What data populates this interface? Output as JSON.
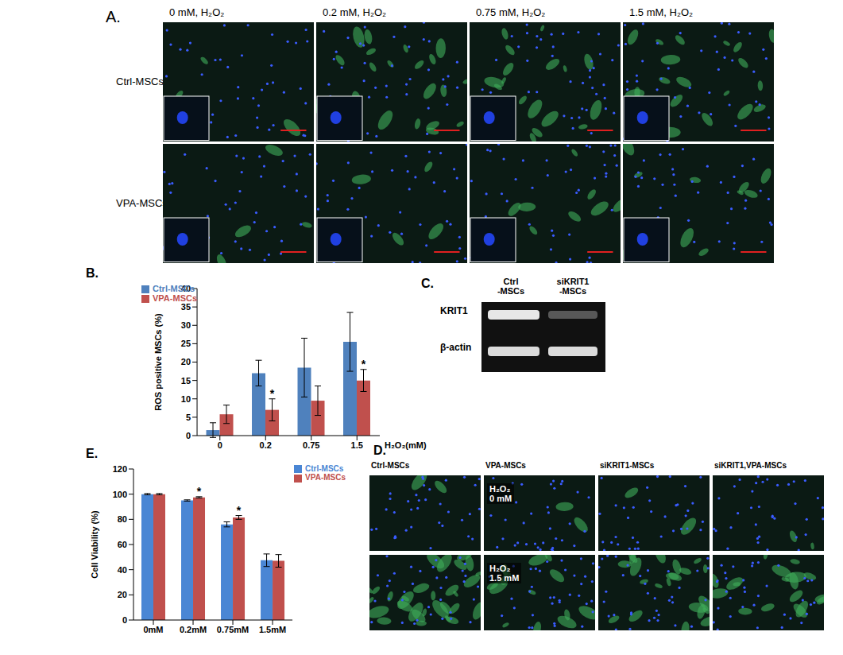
{
  "chart_data": [
    {
      "type": "bar",
      "panel_label": "B.",
      "y_label": "ROS positive MSCs (%)",
      "x_label": "H₂O₂(mM)",
      "categories": [
        "0",
        "0.2",
        "0.75",
        "1.5"
      ],
      "series": [
        {
          "name": "Ctrl-MSCs",
          "color": "#4f81bd",
          "values": [
            1.5,
            17,
            18.5,
            25.5
          ],
          "errors": [
            2,
            3.5,
            8,
            8
          ]
        },
        {
          "name": "VPA-MSCs",
          "color": "#c0504d",
          "values": [
            5.8,
            7,
            9.5,
            15
          ],
          "errors": [
            2.5,
            3,
            4,
            3
          ]
        }
      ],
      "annotations": [
        {
          "series": "VPA-MSCs",
          "category": "0.2",
          "text": "*"
        },
        {
          "series": "VPA-MSCs",
          "category": "1.5",
          "text": "*"
        }
      ],
      "ylim": [
        0,
        40
      ],
      "yticks": [
        0,
        5,
        10,
        15,
        20,
        25,
        30,
        35,
        40
      ],
      "legend": "upper left"
    },
    {
      "type": "bar",
      "panel_label": "E.",
      "y_label": "Cell Viability (%)",
      "categories": [
        "0mM",
        "0.2mM",
        "0.75mM",
        "1.5mM"
      ],
      "series": [
        {
          "name": "Ctrl-MSCs",
          "color": "#4a86d4",
          "values": [
            100,
            95,
            76,
            47.5
          ],
          "errors": [
            0.5,
            0.5,
            2,
            5
          ]
        },
        {
          "name": "VPA-MSCs",
          "color": "#c0504d",
          "values": [
            100,
            97.5,
            81.5,
            47
          ],
          "errors": [
            0.5,
            0.5,
            1.5,
            5
          ]
        }
      ],
      "annotations": [
        {
          "series": "VPA-MSCs",
          "category": "0.2mM",
          "text": "*"
        },
        {
          "series": "VPA-MSCs",
          "category": "0.75mM",
          "text": "*"
        }
      ],
      "ylim": [
        0,
        120
      ],
      "yticks": [
        0,
        20,
        40,
        60,
        80,
        100,
        120
      ],
      "legend": "upper right"
    }
  ],
  "panel_A": {
    "label": "A.",
    "columns": [
      "0 mM, H₂O₂",
      "0.2 mM, H₂O₂",
      "0.75 mM, H₂O₂",
      "1.5 mM, H₂O₂"
    ],
    "rows": [
      "Ctrl-MSCs",
      "VPA-MSCs"
    ]
  },
  "panel_C": {
    "label": "C.",
    "columns": [
      [
        "Ctrl",
        "-MSCs"
      ],
      [
        "siKRIT1",
        "-MSCs"
      ]
    ],
    "rows": [
      "KRIT1",
      "β-actin"
    ]
  },
  "panel_D": {
    "label": "D.",
    "columns": [
      "Ctrl-MSCs",
      "VPA-MSCs",
      "siKRIT1-MSCs",
      "siKRIT1,VPA-MSCs"
    ],
    "rows": [
      [
        "H₂O₂",
        "0 mM"
      ],
      [
        "H₂O₂",
        "1.5 mM"
      ]
    ]
  }
}
